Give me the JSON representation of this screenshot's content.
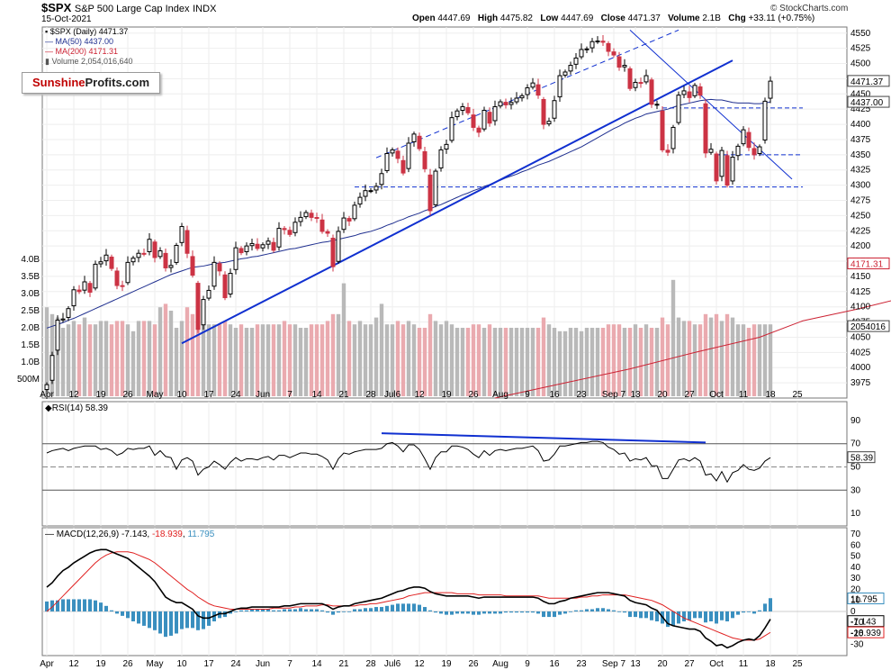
{
  "header": {
    "symbol": "$SPX",
    "name": "S&P 500 Large Cap Index",
    "exchange": "INDX",
    "date": "15-Oct-2021",
    "open_label": "Open",
    "open": "4447.69",
    "high_label": "High",
    "high": "4475.82",
    "low_label": "Low",
    "low": "4447.69",
    "close_label": "Close",
    "close": "4471.37",
    "volume_label": "Volume",
    "volume": "2.1B",
    "chg_label": "Chg",
    "chg": "+33.11 (+0.75%)",
    "copyright": "© StockCharts.com"
  },
  "legend": {
    "price": "$SPX (Daily) 4471.37",
    "ma50": "MA(50) 4437.00",
    "ma200": "MA(200) 4171.31",
    "volume": "Volume 2,054,016,640"
  },
  "logo": {
    "part1": "Sunshine",
    "part2": "Profits.com"
  },
  "colors": {
    "up": "#000000",
    "down": "#cc3344",
    "ma50": "#1f2f8f",
    "ma200": "#cc2233",
    "trend": "#1030d0",
    "vol_up": "#b9b9b9",
    "vol_down": "#eaaaaf",
    "macd_hist": "#3a8fbf",
    "signal": "#e02020"
  },
  "chart_data": [
    {
      "type": "candlestick",
      "title": "$SPX (Daily)",
      "ylim": [
        3950,
        4560
      ],
      "y_ticks": [
        3975,
        4000,
        4025,
        4050,
        4075,
        4100,
        4125,
        4150,
        4175,
        4200,
        4225,
        4250,
        4275,
        4300,
        4325,
        4350,
        4375,
        4400,
        4425,
        4450,
        4475,
        4500,
        4525,
        4550
      ],
      "x_labels": [
        "Apr",
        "12",
        "19",
        "26",
        "May",
        "10",
        "17",
        "24",
        "Jun",
        "7",
        "14",
        "21",
        "28",
        "Jul6",
        "12",
        "19",
        "26",
        "Aug",
        "9",
        "16",
        "23",
        "Sep 7",
        "13",
        "20",
        "27",
        "Oct",
        "11",
        "18",
        "25"
      ],
      "x_label_index": [
        0,
        5,
        10,
        15,
        20,
        25,
        30,
        35,
        40,
        45,
        50,
        55,
        60,
        64,
        69,
        74,
        79,
        84,
        89,
        94,
        99,
        105,
        109,
        114,
        119,
        124,
        129,
        134,
        139
      ],
      "price_tags": [
        "4471.37",
        "4437.00",
        "4171.31",
        "2054016"
      ],
      "volume_ticks": [
        "500M",
        "1.0B",
        "1.5B",
        "2.0B",
        "2.5B",
        "3.0B",
        "3.5B",
        "4.0B"
      ],
      "closes": [
        3972,
        4020,
        4078,
        4080,
        4097,
        4128,
        4125,
        4141,
        4124,
        4170,
        4174,
        4185,
        4163,
        4135,
        4134,
        4173,
        4180,
        4188,
        4187,
        4211,
        4181,
        4192,
        4164,
        4168,
        4201,
        4232,
        4188,
        4152,
        4063,
        4112,
        4127,
        4173,
        4159,
        4115,
        4155,
        4197,
        4189,
        4200,
        4204,
        4196,
        4202,
        4208,
        4193,
        4229,
        4227,
        4219,
        4239,
        4247,
        4255,
        4247,
        4246,
        4224,
        4221,
        4166,
        4224,
        4246,
        4241,
        4267,
        4280,
        4291,
        4291,
        4298,
        4319,
        4352,
        4358,
        4344,
        4320,
        4369,
        4384,
        4360,
        4327,
        4258,
        4323,
        4358,
        4367,
        4411,
        4422,
        4429,
        4419,
        4395,
        4387,
        4423,
        4402,
        4429,
        4437,
        4432,
        4436,
        4443,
        4447,
        4460,
        4468,
        4448,
        4400,
        4405,
        4439,
        4480,
        4486,
        4497,
        4509,
        4523,
        4524,
        4536,
        4537,
        4535,
        4520,
        4514,
        4494,
        4497,
        4459,
        4469,
        4468,
        4480,
        4433,
        4433,
        4358,
        4354,
        4395,
        4448,
        4455,
        4444,
        4464,
        4448,
        4353,
        4359,
        4307,
        4357,
        4300,
        4346,
        4364,
        4391,
        4362,
        4350,
        4363,
        4438,
        4471
      ],
      "ma50": [
        4065,
        4068,
        4071,
        4074,
        4078,
        4081,
        4085,
        4089,
        4093,
        4097,
        4101,
        4105,
        4109,
        4113,
        4117,
        4121,
        4125,
        4129,
        4133,
        4137,
        4141,
        4145,
        4149,
        4153,
        4156,
        4159,
        4162,
        4165,
        4166,
        4167,
        4169,
        4171,
        4172,
        4173,
        4175,
        4177,
        4179,
        4180,
        4182,
        4183,
        4185,
        4187,
        4189,
        4191,
        4193,
        4195,
        4196,
        4198,
        4200,
        4202,
        4204,
        4206,
        4207,
        4209,
        4211,
        4213,
        4215,
        4217,
        4220,
        4222,
        4224,
        4227,
        4230,
        4234,
        4237,
        4241,
        4244,
        4248,
        4251,
        4254,
        4258,
        4261,
        4265,
        4268,
        4272,
        4276,
        4280,
        4284,
        4287,
        4291,
        4294,
        4298,
        4301,
        4305,
        4308,
        4312,
        4315,
        4318,
        4322,
        4325,
        4329,
        4333,
        4336,
        4339,
        4343,
        4347,
        4351,
        4355,
        4359,
        4363,
        4368,
        4373,
        4378,
        4383,
        4388,
        4393,
        4397,
        4402,
        4406,
        4410,
        4413,
        4417,
        4419,
        4421,
        4423,
        4425,
        4428,
        4431,
        4433,
        4435,
        4437,
        4439,
        4440,
        4441,
        4440,
        4440,
        4438,
        4436,
        4435,
        4435,
        4435,
        4434,
        4434,
        4435,
        4437
      ],
      "ma200_points": [
        [
          83,
          3950
        ],
        [
          96,
          3975
        ],
        [
          108,
          3998
        ],
        [
          120,
          4025
        ],
        [
          132,
          4050
        ],
        [
          140,
          4077
        ],
        [
          150,
          4096
        ],
        [
          160,
          4118
        ],
        [
          170,
          4135
        ],
        [
          179,
          4150
        ],
        [
          187,
          4165
        ],
        [
          189,
          4171
        ]
      ],
      "volume_billions": [
        2.6,
        2.4,
        2.3,
        2.0,
        2.1,
        2.2,
        2.1,
        2.3,
        2.1,
        2.1,
        2.2,
        2.2,
        2.1,
        2.2,
        2.2,
        2.1,
        1.9,
        2.2,
        2.2,
        2.2,
        2.1,
        2.6,
        2.7,
        2.5,
        2.0,
        2.2,
        2.6,
        2.4,
        2.3,
        2.4,
        2.1,
        2.1,
        2.1,
        2.2,
        2.1,
        2.0,
        2.1,
        2.0,
        2.0,
        2.1,
        2.1,
        2.1,
        2.1,
        2.1,
        2.2,
        2.1,
        2.1,
        2.0,
        2.0,
        2.1,
        2.1,
        2.1,
        2.2,
        2.4,
        2.4,
        3.3,
        2.2,
        2.1,
        2.2,
        2.1,
        2.1,
        2.3,
        2.7,
        2.1,
        2.1,
        2.2,
        2.1,
        2.2,
        2.1,
        2.0,
        2.0,
        2.4,
        2.2,
        2.1,
        2.2,
        2.1,
        2.0,
        2.0,
        2.0,
        2.1,
        2.1,
        2.0,
        2.1,
        2.0,
        2.0,
        2.0,
        2.0,
        2.0,
        2.0,
        2.0,
        2.0,
        2.0,
        2.3,
        2.1,
        2.0,
        1.9,
        1.9,
        2.0,
        2.0,
        1.9,
        2.0,
        2.0,
        2.0,
        2.0,
        2.1,
        2.1,
        2.1,
        2.0,
        2.0,
        2.1,
        2.0,
        2.1,
        2.0,
        2.0,
        2.3,
        2.1,
        3.4,
        2.3,
        2.2,
        2.2,
        2.1,
        2.1,
        2.4,
        2.3,
        2.4,
        2.2,
        2.4,
        2.3,
        2.1,
        2.1,
        2.0,
        2.1,
        2.1,
        2.1,
        2.1
      ]
    },
    {
      "type": "line",
      "title": "RSI(14) 58.39",
      "ylim": [
        0,
        100
      ],
      "y_ticks": [
        10,
        30,
        50,
        70,
        90
      ],
      "current": "58.39",
      "values": [
        62,
        64,
        65,
        66,
        64,
        66,
        67,
        68,
        68,
        68,
        65,
        66,
        64,
        60,
        62,
        66,
        65,
        66,
        66,
        68,
        60,
        64,
        59,
        58,
        48,
        56,
        58,
        55,
        43,
        48,
        50,
        55,
        52,
        48,
        54,
        58,
        55,
        57,
        57,
        56,
        58,
        59,
        56,
        60,
        60,
        58,
        60,
        62,
        62,
        61,
        61,
        59,
        56,
        48,
        57,
        62,
        61,
        63,
        64,
        65,
        65,
        65,
        66,
        70,
        71,
        68,
        63,
        69,
        69,
        65,
        57,
        48,
        58,
        63,
        63,
        68,
        68,
        67,
        65,
        61,
        58,
        64,
        60,
        64,
        65,
        64,
        65,
        66,
        66,
        67,
        68,
        64,
        55,
        56,
        61,
        68,
        68,
        69,
        70,
        71,
        71,
        72,
        72,
        71,
        67,
        65,
        61,
        62,
        55,
        57,
        56,
        58,
        51,
        51,
        40,
        40,
        48,
        56,
        57,
        55,
        58,
        55,
        43,
        44,
        38,
        46,
        37,
        45,
        47,
        52,
        48,
        47,
        49,
        55,
        58
      ]
    },
    {
      "type": "bar",
      "title": "MACD(12,26,9)",
      "ylim": [
        -40,
        75
      ],
      "y_ticks": [
        -30,
        -20,
        -10,
        0,
        10,
        20,
        30,
        40,
        50,
        60,
        70
      ],
      "series": [
        {
          "name": "MACD",
          "current": "-7.143",
          "values": [
            22,
            26,
            32,
            37,
            40,
            44,
            47,
            50,
            53,
            55,
            56,
            56,
            54,
            52,
            50,
            48,
            44,
            40,
            36,
            32,
            27,
            20,
            13,
            10,
            8,
            8,
            5,
            2,
            -4,
            -6,
            -6,
            -4,
            -2,
            -2,
            0,
            2,
            3,
            3,
            4,
            4,
            4,
            4,
            4,
            4,
            5,
            5,
            6,
            7,
            7,
            7,
            7,
            7,
            5,
            2,
            4,
            5,
            5,
            7,
            8,
            9,
            10,
            11,
            12,
            14,
            16,
            18,
            19,
            21,
            22,
            22,
            21,
            18,
            16,
            15,
            14,
            14,
            14,
            14,
            14,
            13,
            12,
            13,
            13,
            13,
            13,
            13,
            13,
            13,
            13,
            13,
            13,
            12,
            9,
            7,
            7,
            9,
            10,
            12,
            13,
            14,
            15,
            16,
            17,
            17,
            17,
            16,
            15,
            14,
            10,
            8,
            7,
            6,
            3,
            1,
            -5,
            -11,
            -13,
            -14,
            -15,
            -16,
            -16,
            -18,
            -24,
            -27,
            -31,
            -30,
            -33,
            -31,
            -28,
            -26,
            -25,
            -26,
            -22,
            -15,
            -7
          ]
        },
        {
          "name": "Signal",
          "current": "-18.939",
          "values": [
            0,
            4,
            9,
            14,
            19,
            24,
            29,
            34,
            39,
            44,
            48,
            51,
            53,
            54,
            54,
            54,
            53,
            51,
            49,
            47,
            44,
            40,
            36,
            32,
            28,
            24,
            20,
            17,
            13,
            10,
            7,
            5,
            4,
            3,
            2,
            2,
            2,
            2,
            2,
            2,
            2,
            2,
            3,
            3,
            3,
            3,
            4,
            4,
            5,
            5,
            5,
            6,
            6,
            5,
            5,
            5,
            5,
            5,
            6,
            6,
            7,
            7,
            8,
            9,
            10,
            11,
            12,
            14,
            15,
            16,
            17,
            17,
            17,
            17,
            17,
            17,
            16,
            16,
            16,
            16,
            15,
            15,
            15,
            15,
            15,
            14,
            14,
            14,
            14,
            14,
            14,
            14,
            13,
            12,
            12,
            12,
            12,
            12,
            12,
            13,
            13,
            14,
            14,
            15,
            15,
            15,
            15,
            15,
            14,
            13,
            12,
            11,
            10,
            8,
            6,
            3,
            0,
            -3,
            -6,
            -8,
            -10,
            -12,
            -14,
            -16,
            -18,
            -20,
            -22,
            -24,
            -25,
            -26,
            -26,
            -26,
            -25,
            -22,
            -19
          ]
        },
        {
          "name": "Histogram",
          "current": "11.795",
          "values": [
            9,
            10,
            10,
            11,
            11,
            11,
            11,
            11,
            11,
            10,
            8,
            5,
            1,
            -2,
            -4,
            -6,
            -9,
            -11,
            -13,
            -15,
            -17,
            -20,
            -23,
            -22,
            -20,
            -16,
            -15,
            -15,
            -17,
            -16,
            -13,
            -9,
            -6,
            -5,
            -2,
            0,
            1,
            1,
            2,
            2,
            2,
            2,
            1,
            1,
            2,
            2,
            2,
            3,
            2,
            2,
            2,
            1,
            -1,
            -3,
            -1,
            0,
            0,
            2,
            2,
            3,
            3,
            4,
            4,
            5,
            6,
            7,
            7,
            7,
            7,
            6,
            4,
            1,
            -1,
            -2,
            -3,
            -3,
            -2,
            -2,
            -2,
            -3,
            -3,
            -2,
            -2,
            -2,
            -2,
            -1,
            -1,
            -1,
            -1,
            -1,
            -1,
            -2,
            -5,
            -5,
            -5,
            -3,
            -2,
            0,
            1,
            1,
            2,
            2,
            3,
            3,
            2,
            1,
            0,
            -1,
            -5,
            -5,
            -6,
            -6,
            -8,
            -9,
            -11,
            -14,
            -13,
            -11,
            -9,
            -8,
            -6,
            -6,
            -10,
            -9,
            -11,
            -8,
            -9,
            -6,
            -3,
            -1,
            0,
            -2,
            1,
            7,
            12
          ]
        }
      ]
    }
  ]
}
